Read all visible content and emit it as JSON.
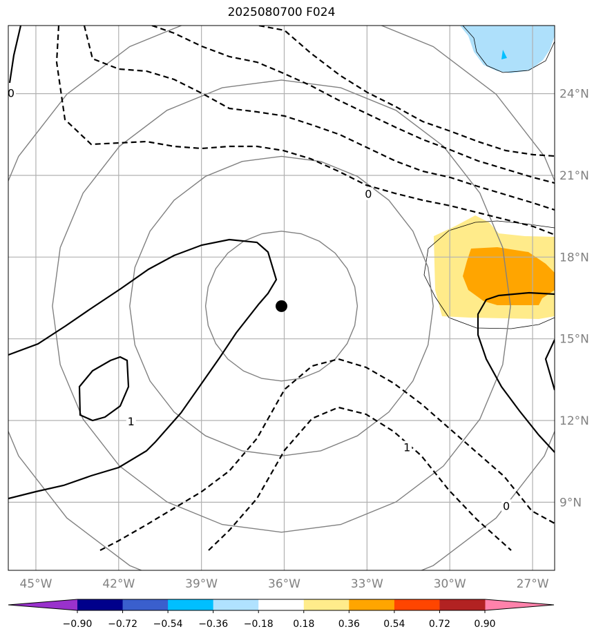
{
  "title": "2025080700 F024",
  "map": {
    "lon_range": [
      -46,
      -26.2
    ],
    "lat_range": [
      6.5,
      26.5
    ],
    "xticks": [
      {
        "value": -45,
        "label": "45°W"
      },
      {
        "value": -42,
        "label": "42°W"
      },
      {
        "value": -39,
        "label": "39°W"
      },
      {
        "value": -36,
        "label": "36°W"
      },
      {
        "value": -33,
        "label": "33°W"
      },
      {
        "value": -30,
        "label": "30°W"
      },
      {
        "value": -27,
        "label": "27°W"
      }
    ],
    "yticks": [
      {
        "value": 9,
        "label": "9°N"
      },
      {
        "value": 12,
        "label": "12°N"
      },
      {
        "value": 15,
        "label": "15°N"
      },
      {
        "value": 18,
        "label": "18°N"
      },
      {
        "value": 21,
        "label": "21°N"
      },
      {
        "value": 24,
        "label": "24°N"
      }
    ],
    "storm_center": {
      "lon": -36.1,
      "lat": 16.2
    },
    "range_rings_deg": [
      2.75,
      5.5,
      8.3,
      11.0
    ],
    "contour_labels": [
      {
        "text": "0",
        "lon": -32.95,
        "lat": 20.3
      },
      {
        "text": "1",
        "lon": -41.55,
        "lat": 11.95
      },
      {
        "text": "1",
        "lon": -31.55,
        "lat": 11.0
      },
      {
        "text": "0",
        "lon": -27.95,
        "lat": 8.85
      },
      {
        "text": "0",
        "lon": -45.9,
        "lat": 24.0
      }
    ],
    "colors": {
      "grid": "#b0b0b0",
      "ring": "#808080",
      "contour": "#000000",
      "shade_light_yellow": "#ffeb8a",
      "shade_orange": "#ffa500",
      "shade_light_blue": "#aee0fb",
      "shade_blue": "#00bfff"
    }
  },
  "colorbar": {
    "colors": [
      "#9932cc",
      "#00008b",
      "#3a5fcd",
      "#00bfff",
      "#b0e2ff",
      "#ffffff",
      "#ffec8b",
      "#ffa500",
      "#ff4500",
      "#b22222",
      "#ff82ab"
    ],
    "labels": [
      "−0.90",
      "−0.72",
      "−0.54",
      "−0.36",
      "−0.18",
      "0.18",
      "0.36",
      "0.54",
      "0.72",
      "0.90"
    ]
  }
}
